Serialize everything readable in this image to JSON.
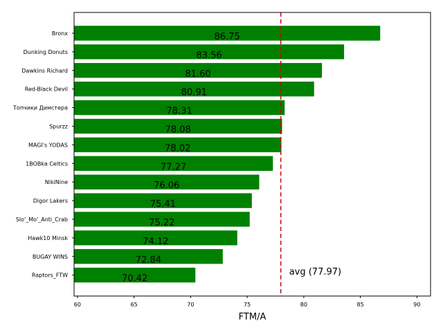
{
  "chart_data": {
    "type": "bar",
    "orientation": "horizontal",
    "title": "",
    "xlabel": "FTM/A",
    "ylabel": "",
    "xlim": [
      59.7,
      91.2
    ],
    "xticks": [
      60,
      65,
      70,
      75,
      80,
      85,
      90
    ],
    "grid": false,
    "bar_color": "#008000",
    "categories": [
      "Bronx",
      "Dunking Donuts",
      "Dawkins Richard",
      "Red-Black Devil",
      "Топчики Димстера",
      "Spurzz",
      "MAGI's YODAS",
      "1BOBka Celtics",
      "NikiNine",
      "Digor Lakers",
      "Slo'_Mo'_Anti_Crab",
      "Hawk10 Minsk",
      "BUGAY WINS",
      "Raptors_FTW"
    ],
    "values": [
      86.75,
      83.56,
      81.6,
      80.91,
      78.31,
      78.08,
      78.02,
      77.27,
      76.06,
      75.41,
      75.22,
      74.12,
      72.84,
      70.42
    ],
    "value_labels": [
      "86.75",
      "83.56",
      "81.60",
      "80.91",
      "78.31",
      "78.08",
      "78.02",
      "77.27",
      "76.06",
      "75.41",
      "75.22",
      "74.12",
      "72.84",
      "70.42"
    ],
    "reference_line": {
      "value": 77.97,
      "label": "avg (77.97)",
      "color": "#cc0000",
      "style": "dashed"
    }
  }
}
